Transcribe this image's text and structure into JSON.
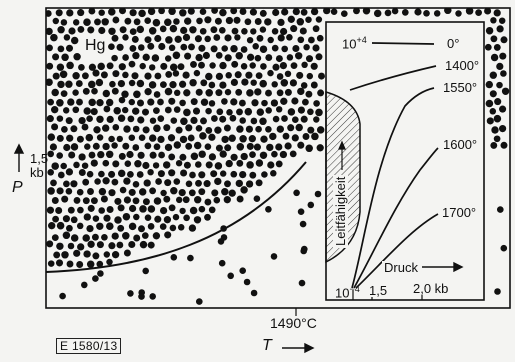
{
  "labels": {
    "substance": "Hg",
    "pressure_symbol": "P",
    "pressure_value": "1,5",
    "pressure_unit": "kb",
    "critical_temperature": "1490°C",
    "temperature_symbol": "T",
    "figure_code": "E 1580/13"
  },
  "inset": {
    "y_top_label": "10+4",
    "y_bottom_label": "10−4",
    "vertical_axis_label": "Leitfähigkeit",
    "x_axis_label": "Druck",
    "x_tick_1": "1,5",
    "x_tick_2": "2,0 kb",
    "curves": [
      "0°",
      "1400°",
      "1550°",
      "1600°",
      "1700°"
    ]
  },
  "colors": {
    "ink": "#111111",
    "paper": "#f4f4f2"
  }
}
